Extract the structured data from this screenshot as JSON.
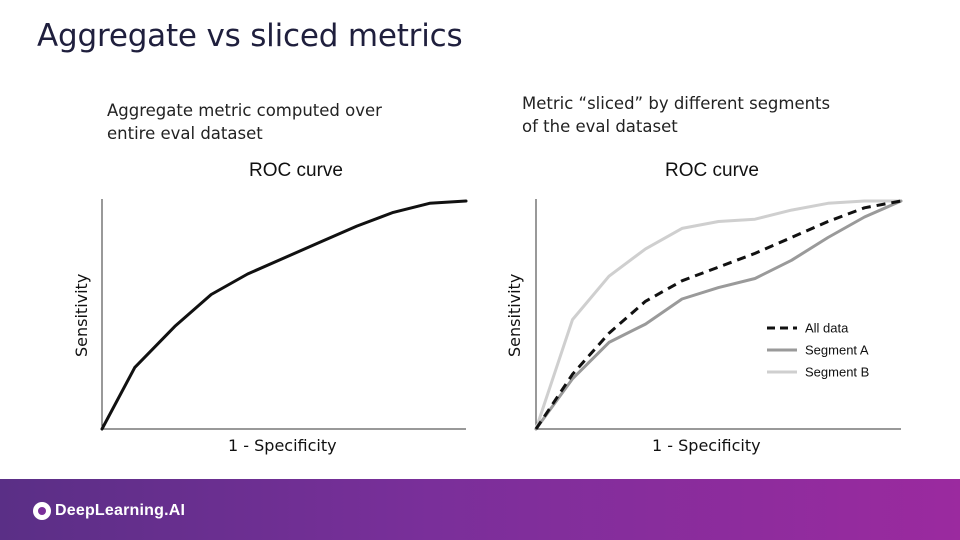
{
  "slide": {
    "title": "Aggregate vs sliced metrics",
    "caption_left": [
      "Aggregate metric computed over",
      "entire eval dataset"
    ],
    "caption_right": [
      "Metric “sliced” by different segments",
      "of the eval dataset"
    ]
  },
  "footer": {
    "logo_text": "DeepLearning.AI",
    "logo_icon": "deeplearning-logo-icon",
    "colors": [
      "#5a2f86",
      "#9b2a9f"
    ]
  },
  "chart_data": [
    {
      "type": "line",
      "title": "ROC curve",
      "xlabel": "1 - Specificity",
      "ylabel": "Sensitivity",
      "xlim": [
        0,
        1
      ],
      "ylim": [
        0,
        1
      ],
      "grid": false,
      "series": [
        {
          "color": "#111111",
          "style": "solid",
          "x": [
            0,
            0.09,
            0.2,
            0.3,
            0.4,
            0.5,
            0.6,
            0.7,
            0.8,
            0.9,
            1.0
          ],
          "y": [
            0,
            0.27,
            0.45,
            0.59,
            0.68,
            0.75,
            0.82,
            0.89,
            0.95,
            0.99,
            1.0
          ]
        }
      ]
    },
    {
      "type": "line",
      "title": "ROC curve",
      "xlabel": "1 - Specificity",
      "ylabel": "Sensitivity",
      "xlim": [
        0,
        1
      ],
      "ylim": [
        0,
        1
      ],
      "grid": false,
      "legend_position": "bottom-right",
      "series": [
        {
          "name": "All data",
          "color": "#111111",
          "style": "dashed",
          "x": [
            0,
            0.1,
            0.2,
            0.3,
            0.4,
            0.5,
            0.6,
            0.7,
            0.8,
            0.9,
            1.0
          ],
          "y": [
            0,
            0.24,
            0.42,
            0.56,
            0.65,
            0.71,
            0.77,
            0.84,
            0.91,
            0.97,
            1.0
          ]
        },
        {
          "name": "Segment A",
          "color": "#9a9a9a",
          "style": "solid",
          "x": [
            0,
            0.1,
            0.2,
            0.3,
            0.4,
            0.5,
            0.6,
            0.7,
            0.8,
            0.9,
            1.0
          ],
          "y": [
            0,
            0.22,
            0.38,
            0.46,
            0.57,
            0.62,
            0.66,
            0.74,
            0.84,
            0.93,
            1.0
          ]
        },
        {
          "name": "Segment B",
          "color": "#cfcfcf",
          "style": "solid",
          "x": [
            0,
            0.1,
            0.2,
            0.3,
            0.4,
            0.5,
            0.6,
            0.7,
            0.8,
            0.9,
            1.0
          ],
          "y": [
            0,
            0.48,
            0.67,
            0.79,
            0.88,
            0.91,
            0.92,
            0.96,
            0.99,
            1.0,
            1.0
          ]
        }
      ]
    }
  ]
}
